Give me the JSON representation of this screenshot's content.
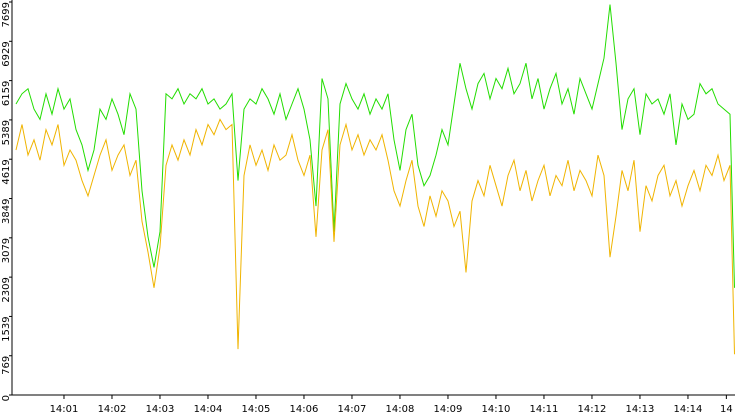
{
  "chart_data": {
    "type": "line",
    "x": [
      0,
      0.125,
      0.25,
      0.375,
      0.5,
      0.625,
      0.75,
      0.875,
      1,
      1.125,
      1.25,
      1.375,
      1.5,
      1.625,
      1.75,
      1.875,
      2,
      2.125,
      2.25,
      2.375,
      2.5,
      2.625,
      2.75,
      2.875,
      3,
      3.125,
      3.25,
      3.375,
      3.5,
      3.625,
      3.75,
      3.875,
      4,
      4.125,
      4.25,
      4.375,
      4.5,
      4.625,
      4.75,
      4.875,
      5,
      5.125,
      5.25,
      5.375,
      5.5,
      5.625,
      5.75,
      5.875,
      6,
      6.125,
      6.25,
      6.375,
      6.5,
      6.625,
      6.75,
      6.875,
      7,
      7.125,
      7.25,
      7.375,
      7.5,
      7.625,
      7.75,
      7.875,
      8,
      8.125,
      8.25,
      8.375,
      8.5,
      8.625,
      8.75,
      8.875,
      9,
      9.125,
      9.25,
      9.375,
      9.5,
      9.625,
      9.75,
      9.875,
      10,
      10.125,
      10.25,
      10.375,
      10.5,
      10.625,
      10.75,
      10.875,
      11,
      11.125,
      11.25,
      11.375,
      11.5,
      11.625,
      11.75,
      11.875,
      12,
      12.125,
      12.25,
      12.375,
      12.5,
      12.625,
      12.75,
      12.875,
      13,
      13.125,
      13.25,
      13.375,
      13.5,
      13.625,
      13.75,
      13.875,
      14,
      14.125,
      14.25,
      14.375,
      14.5,
      14.625,
      14.75,
      14.875,
      14.97
    ],
    "series": [
      {
        "color": "#22dd00",
        "values": [
          5700,
          5900,
          6000,
          5600,
          5400,
          5900,
          5500,
          6000,
          5600,
          5800,
          5200,
          4900,
          4400,
          4800,
          5600,
          5400,
          5800,
          5500,
          5100,
          5900,
          5600,
          4000,
          3100,
          2500,
          3200,
          5900,
          5800,
          6000,
          5700,
          5900,
          5800,
          6000,
          5700,
          5800,
          5600,
          5700,
          5900,
          4200,
          5600,
          5800,
          5700,
          6000,
          5800,
          5500,
          5900,
          5400,
          5700,
          6000,
          5600,
          5000,
          3700,
          6200,
          5800,
          3200,
          5700,
          6100,
          5800,
          5600,
          5900,
          5500,
          5800,
          5600,
          5900,
          5000,
          4400,
          5200,
          5500,
          4500,
          4100,
          4300,
          4700,
          5200,
          4900,
          5700,
          6500,
          6000,
          5600,
          6100,
          6300,
          5800,
          6200,
          6000,
          6400,
          5900,
          6100,
          6500,
          5800,
          6200,
          5600,
          6000,
          6300,
          5700,
          6000,
          5500,
          6200,
          5900,
          5600,
          6100,
          6600,
          7650,
          6500,
          5200,
          5800,
          6000,
          5100,
          5900,
          5700,
          5800,
          5500,
          5900,
          4900,
          5700,
          5400,
          5500,
          6100,
          5900,
          6000,
          5700,
          5600,
          5500,
          2100
        ]
      },
      {
        "color": "#f0b400",
        "values": [
          4800,
          5300,
          4700,
          5000,
          4600,
          5200,
          4900,
          5300,
          4500,
          4800,
          4600,
          4200,
          3900,
          4300,
          4700,
          5000,
          4400,
          4700,
          4900,
          4300,
          4600,
          3400,
          2800,
          2100,
          2900,
          4500,
          4900,
          4600,
          5000,
          4700,
          5200,
          4900,
          5300,
          5100,
          5400,
          5200,
          5300,
          900,
          4300,
          4900,
          4500,
          4800,
          4400,
          4900,
          4600,
          4700,
          5100,
          4600,
          4300,
          4700,
          3100,
          4800,
          5200,
          3000,
          4900,
          5300,
          4800,
          5100,
          4700,
          5000,
          4800,
          5100,
          4600,
          4000,
          3700,
          4200,
          4600,
          3700,
          3300,
          3900,
          3500,
          4000,
          3800,
          3300,
          3600,
          2400,
          3800,
          4200,
          3900,
          4500,
          4100,
          3700,
          4300,
          4600,
          4000,
          4400,
          3800,
          4200,
          4500,
          3900,
          4300,
          4100,
          4600,
          4000,
          4400,
          4200,
          3900,
          4700,
          4300,
          2700,
          3500,
          4400,
          4000,
          4600,
          3200,
          4100,
          3800,
          4300,
          4500,
          3900,
          4200,
          3700,
          4100,
          4400,
          4000,
          4500,
          4300,
          4700,
          4200,
          4500,
          800
        ]
      }
    ],
    "xlim": [
      -0.083,
      14.98
    ],
    "xticks": [
      {
        "value": 1,
        "label": "14:01"
      },
      {
        "value": 2,
        "label": "14:02"
      },
      {
        "value": 3,
        "label": "14:03"
      },
      {
        "value": 4,
        "label": "14:04"
      },
      {
        "value": 5,
        "label": "14:05"
      },
      {
        "value": 6,
        "label": "14:06"
      },
      {
        "value": 7,
        "label": "14:07"
      },
      {
        "value": 8,
        "label": "14:08"
      },
      {
        "value": 9,
        "label": "14:09"
      },
      {
        "value": 10,
        "label": "14:10"
      },
      {
        "value": 11,
        "label": "14:11"
      },
      {
        "value": 12,
        "label": "14:12"
      },
      {
        "value": 13,
        "label": "14:13"
      },
      {
        "value": 14,
        "label": "14:14"
      },
      {
        "value": 14.8,
        "label": "14"
      }
    ],
    "ylim": [
      0,
      7699
    ],
    "yticks": [
      0,
      769,
      1539,
      2309,
      3079,
      3849,
      4619,
      5389,
      6159,
      6929,
      7699
    ]
  }
}
